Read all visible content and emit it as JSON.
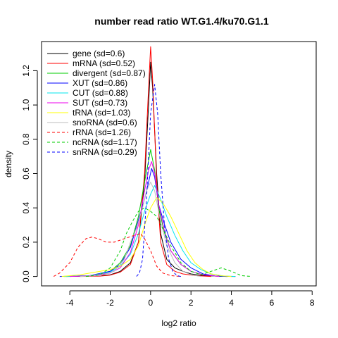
{
  "chart_data": {
    "type": "line",
    "title": "number read ratio WT.G1.4/ku70.G1.1",
    "xlabel": "log2 ratio",
    "ylabel": "density",
    "xlim": [
      -5.4,
      8.2
    ],
    "ylim": [
      -0.055,
      1.37
    ],
    "x_ticks": [
      -4,
      -2,
      0,
      2,
      4,
      6,
      8
    ],
    "y_ticks": [
      0.0,
      0.2,
      0.4,
      0.6,
      0.8,
      1.0,
      1.2
    ],
    "grid": false,
    "legend_position": "top-left",
    "series": [
      {
        "name": "gene (sd=0.6)",
        "color": "#000000",
        "dash": "solid",
        "points": [
          [
            -4.2,
            0
          ],
          [
            -3,
            0.002
          ],
          [
            -2,
            0.01
          ],
          [
            -1.5,
            0.03
          ],
          [
            -1,
            0.08
          ],
          [
            -0.6,
            0.2
          ],
          [
            -0.3,
            0.55
          ],
          [
            -0.1,
            1.0
          ],
          [
            0,
            1.25
          ],
          [
            0.1,
            1.1
          ],
          [
            0.3,
            0.6
          ],
          [
            0.5,
            0.25
          ],
          [
            0.8,
            0.1
          ],
          [
            1.2,
            0.05
          ],
          [
            1.6,
            0.03
          ],
          [
            2,
            0.015
          ],
          [
            2.6,
            0.005
          ],
          [
            3.5,
            0.001
          ],
          [
            4.2,
            0
          ]
        ]
      },
      {
        "name": "mRNA (sd=0.52)",
        "color": "#ff0000",
        "dash": "solid",
        "points": [
          [
            -3.5,
            0
          ],
          [
            -2.5,
            0.002
          ],
          [
            -2,
            0.008
          ],
          [
            -1.5,
            0.025
          ],
          [
            -1,
            0.07
          ],
          [
            -0.6,
            0.2
          ],
          [
            -0.3,
            0.6
          ],
          [
            -0.1,
            1.1
          ],
          [
            0,
            1.34
          ],
          [
            0.1,
            1.15
          ],
          [
            0.3,
            0.55
          ],
          [
            0.5,
            0.2
          ],
          [
            0.8,
            0.07
          ],
          [
            1.2,
            0.03
          ],
          [
            1.6,
            0.015
          ],
          [
            2.2,
            0.005
          ],
          [
            3,
            0
          ]
        ]
      },
      {
        "name": "divergent (sd=0.87)",
        "color": "#00cd00",
        "dash": "solid",
        "points": [
          [
            -4.3,
            0
          ],
          [
            -3,
            0.005
          ],
          [
            -2,
            0.03
          ],
          [
            -1.5,
            0.08
          ],
          [
            -1,
            0.18
          ],
          [
            -0.6,
            0.35
          ],
          [
            -0.3,
            0.55
          ],
          [
            0,
            0.74
          ],
          [
            0.2,
            0.62
          ],
          [
            0.4,
            0.4
          ],
          [
            0.7,
            0.25
          ],
          [
            1,
            0.15
          ],
          [
            1.5,
            0.07
          ],
          [
            2,
            0.03
          ],
          [
            2.6,
            0.01
          ],
          [
            3.2,
            0.002
          ],
          [
            3.8,
            0
          ]
        ]
      },
      {
        "name": "XUT (sd=0.86)",
        "color": "#0000ff",
        "dash": "solid",
        "points": [
          [
            -4.5,
            0
          ],
          [
            -3,
            0.005
          ],
          [
            -2,
            0.03
          ],
          [
            -1.5,
            0.07
          ],
          [
            -1,
            0.17
          ],
          [
            -0.6,
            0.33
          ],
          [
            -0.3,
            0.45
          ],
          [
            -0.1,
            0.55
          ],
          [
            0.05,
            0.63
          ],
          [
            0.2,
            0.58
          ],
          [
            0.4,
            0.42
          ],
          [
            0.7,
            0.3
          ],
          [
            1,
            0.2
          ],
          [
            1.5,
            0.1
          ],
          [
            2,
            0.05
          ],
          [
            2.6,
            0.015
          ],
          [
            3.2,
            0.003
          ],
          [
            3.8,
            0
          ]
        ]
      },
      {
        "name": "CUT (sd=0.88)",
        "color": "#00e5ee",
        "dash": "solid",
        "points": [
          [
            -4.3,
            0
          ],
          [
            -3,
            0.005
          ],
          [
            -2,
            0.025
          ],
          [
            -1.5,
            0.06
          ],
          [
            -1,
            0.13
          ],
          [
            -0.6,
            0.25
          ],
          [
            -0.3,
            0.38
          ],
          [
            0,
            0.48
          ],
          [
            0.2,
            0.53
          ],
          [
            0.5,
            0.45
          ],
          [
            0.8,
            0.35
          ],
          [
            1.2,
            0.24
          ],
          [
            1.6,
            0.15
          ],
          [
            2,
            0.08
          ],
          [
            2.5,
            0.04
          ],
          [
            3,
            0.015
          ],
          [
            3.6,
            0.003
          ],
          [
            4.2,
            0
          ]
        ]
      },
      {
        "name": "SUT (sd=0.73)",
        "color": "#ee00ee",
        "dash": "solid",
        "points": [
          [
            -4,
            0
          ],
          [
            -3,
            0.004
          ],
          [
            -2,
            0.02
          ],
          [
            -1.5,
            0.05
          ],
          [
            -1,
            0.14
          ],
          [
            -0.6,
            0.3
          ],
          [
            -0.3,
            0.5
          ],
          [
            -0.1,
            0.62
          ],
          [
            0.05,
            0.67
          ],
          [
            0.2,
            0.6
          ],
          [
            0.4,
            0.42
          ],
          [
            0.7,
            0.26
          ],
          [
            1,
            0.15
          ],
          [
            1.5,
            0.07
          ],
          [
            2,
            0.03
          ],
          [
            2.6,
            0.01
          ],
          [
            3.4,
            0
          ]
        ]
      },
      {
        "name": "tRNA (sd=1.03)",
        "color": "#ffff00",
        "dash": "solid",
        "points": [
          [
            -4.4,
            0
          ],
          [
            -3.5,
            0.01
          ],
          [
            -3,
            0.02
          ],
          [
            -2.5,
            0.03
          ],
          [
            -2,
            0.04
          ],
          [
            -1.5,
            0.06
          ],
          [
            -1,
            0.1
          ],
          [
            -0.6,
            0.18
          ],
          [
            -0.3,
            0.3
          ],
          [
            0,
            0.4
          ],
          [
            0.3,
            0.46
          ],
          [
            0.6,
            0.43
          ],
          [
            1,
            0.35
          ],
          [
            1.4,
            0.25
          ],
          [
            1.8,
            0.15
          ],
          [
            2.2,
            0.08
          ],
          [
            2.6,
            0.04
          ],
          [
            3,
            0.015
          ],
          [
            3.5,
            0.004
          ],
          [
            4,
            0
          ]
        ]
      },
      {
        "name": "snoRNA (sd=0.6)",
        "color": "#bebebe",
        "dash": "solid",
        "points": [
          [
            -3.5,
            0
          ],
          [
            -2.5,
            0.005
          ],
          [
            -1.8,
            0.03
          ],
          [
            -1.3,
            0.1
          ],
          [
            -1,
            0.2
          ],
          [
            -0.7,
            0.28
          ],
          [
            -0.4,
            0.4
          ],
          [
            -0.2,
            0.5
          ],
          [
            0,
            0.55
          ],
          [
            0.2,
            0.5
          ],
          [
            0.5,
            0.32
          ],
          [
            0.8,
            0.18
          ],
          [
            1.2,
            0.08
          ],
          [
            1.6,
            0.03
          ],
          [
            2,
            0.01
          ],
          [
            2.5,
            0
          ]
        ]
      },
      {
        "name": "rRNA (sd=1.26)",
        "color": "#ff0000",
        "dash": "dashed",
        "points": [
          [
            -4.8,
            0
          ],
          [
            -4.5,
            0.02
          ],
          [
            -4,
            0.08
          ],
          [
            -3.6,
            0.17
          ],
          [
            -3.2,
            0.22
          ],
          [
            -2.9,
            0.23
          ],
          [
            -2.6,
            0.22
          ],
          [
            -2.2,
            0.2
          ],
          [
            -1.8,
            0.2
          ],
          [
            -1.3,
            0.22
          ],
          [
            -0.8,
            0.24
          ],
          [
            -0.5,
            0.25
          ],
          [
            -0.3,
            0.22
          ],
          [
            0,
            0.15
          ],
          [
            0.3,
            0.06
          ],
          [
            0.6,
            0.02
          ],
          [
            1,
            0.005
          ],
          [
            1.5,
            0
          ]
        ]
      },
      {
        "name": "ncRNA (sd=1.17)",
        "color": "#00cd00",
        "dash": "dashed",
        "points": [
          [
            -3.2,
            0
          ],
          [
            -2.5,
            0.01
          ],
          [
            -2,
            0.05
          ],
          [
            -1.5,
            0.15
          ],
          [
            -1.2,
            0.25
          ],
          [
            -0.9,
            0.32
          ],
          [
            -0.6,
            0.38
          ],
          [
            -0.3,
            0.4
          ],
          [
            0,
            0.38
          ],
          [
            0.3,
            0.35
          ],
          [
            0.6,
            0.28
          ],
          [
            1,
            0.18
          ],
          [
            1.5,
            0.08
          ],
          [
            2,
            0.03
          ],
          [
            2.5,
            0.01
          ],
          [
            3,
            0.03
          ],
          [
            3.5,
            0.05
          ],
          [
            4,
            0.03
          ],
          [
            4.5,
            0.005
          ],
          [
            5,
            0
          ]
        ]
      },
      {
        "name": "snRNA (sd=0.29)",
        "color": "#0000ff",
        "dash": "dashed",
        "points": [
          [
            -0.7,
            0
          ],
          [
            -0.55,
            0.02
          ],
          [
            -0.4,
            0.1
          ],
          [
            -0.2,
            0.45
          ],
          [
            0,
            0.95
          ],
          [
            0.2,
            1.12
          ],
          [
            0.35,
            0.95
          ],
          [
            0.5,
            0.6
          ],
          [
            0.7,
            0.28
          ],
          [
            0.9,
            0.1
          ],
          [
            1.1,
            0.03
          ],
          [
            1.3,
            0.005
          ],
          [
            1.5,
            0
          ]
        ]
      }
    ]
  }
}
